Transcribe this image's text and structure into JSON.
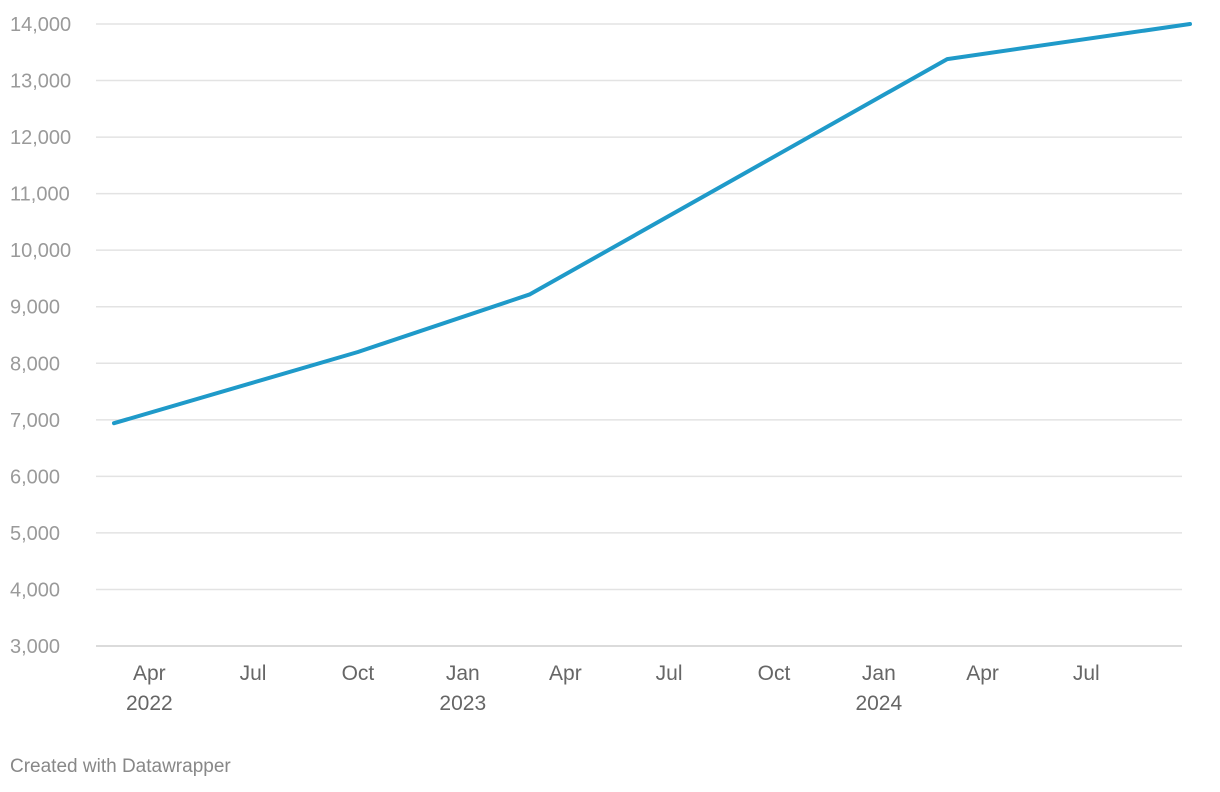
{
  "footer": "Created with Datawrapper",
  "colors": {
    "line": "#1f9ac9"
  },
  "chart_data": {
    "type": "line",
    "title": "",
    "xlabel": "",
    "ylabel": "",
    "grid": true,
    "ylim": [
      3000,
      14000
    ],
    "xlim": [
      "2022-03-01",
      "2024-09-30"
    ],
    "y_ticks": [
      3000,
      4000,
      5000,
      6000,
      7000,
      8000,
      9000,
      10000,
      11000,
      12000,
      13000,
      14000
    ],
    "y_tick_labels": [
      "3,000",
      "4,000",
      "5,000",
      "6,000",
      "7,000",
      "8,000",
      "9,000",
      "10,000",
      "11,000",
      "12,000",
      "13,000",
      "14,000"
    ],
    "x_ticks": [
      {
        "date": "2022-04-01",
        "label": "Apr",
        "year": "2022"
      },
      {
        "date": "2022-07-01",
        "label": "Jul",
        "year": ""
      },
      {
        "date": "2022-10-01",
        "label": "Oct",
        "year": ""
      },
      {
        "date": "2023-01-01",
        "label": "Jan",
        "year": "2023"
      },
      {
        "date": "2023-04-01",
        "label": "Apr",
        "year": ""
      },
      {
        "date": "2023-07-01",
        "label": "Jul",
        "year": ""
      },
      {
        "date": "2023-10-01",
        "label": "Oct",
        "year": ""
      },
      {
        "date": "2024-01-01",
        "label": "Jan",
        "year": "2024"
      },
      {
        "date": "2024-04-01",
        "label": "Apr",
        "year": ""
      },
      {
        "date": "2024-07-01",
        "label": "Jul",
        "year": ""
      }
    ],
    "series": [
      {
        "points": [
          {
            "x": "2022-03-01",
            "y": 6940
          },
          {
            "x": "2022-10-01",
            "y": 8200
          },
          {
            "x": "2023-03-01",
            "y": 9220
          },
          {
            "x": "2024-03-01",
            "y": 13380
          },
          {
            "x": "2024-09-30",
            "y": 14000
          }
        ]
      }
    ]
  }
}
